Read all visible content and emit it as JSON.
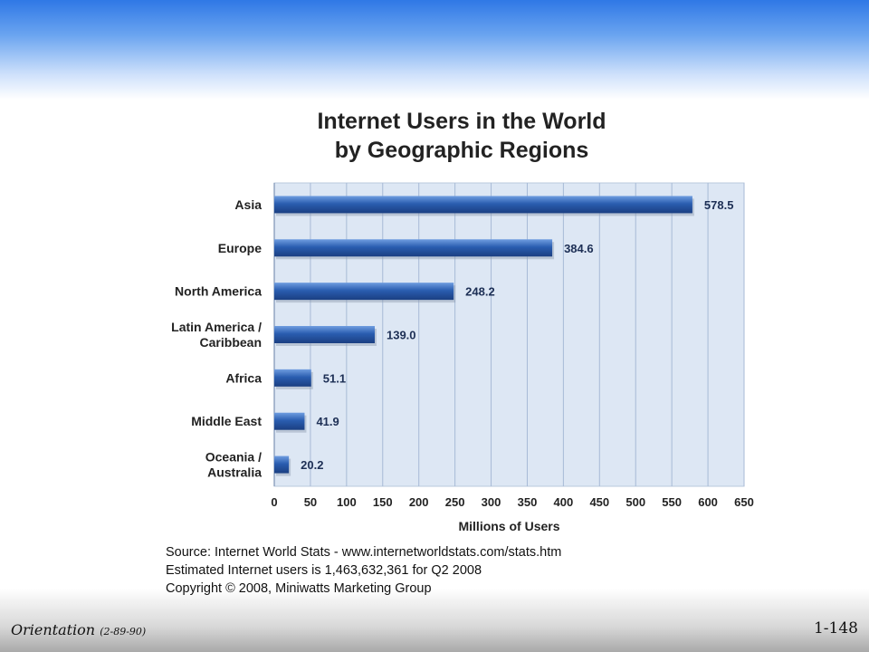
{
  "chart_data": {
    "type": "bar",
    "orientation": "horizontal",
    "title": [
      "Internet Users in the World",
      "by Geographic Regions"
    ],
    "categories": [
      [
        "Asia"
      ],
      [
        "Europe"
      ],
      [
        "North America"
      ],
      [
        "Latin America /",
        "Caribbean"
      ],
      [
        "Africa"
      ],
      [
        "Middle East"
      ],
      [
        "Oceania  /",
        "Australia"
      ]
    ],
    "values": [
      578.5,
      384.6,
      248.2,
      139.0,
      51.1,
      41.9,
      20.2
    ],
    "value_labels": [
      "578.5",
      "384.6",
      "248.2",
      "139.0",
      "51.1",
      "41.9",
      "20.2"
    ],
    "xlabel": "Millions of Users",
    "xlim": [
      0,
      650
    ],
    "xticks": [
      0,
      50,
      100,
      150,
      200,
      250,
      300,
      350,
      400,
      450,
      500,
      550,
      600,
      650
    ],
    "grid": true,
    "bar_color": "#2a5db0",
    "plot_background": "#dde7f4"
  },
  "source": [
    "Source: Internet World Stats - www.internetworldstats.com/stats.htm",
    "Estimated Internet users is 1,463,632,361 for Q2 2008",
    "Copyright © 2008, Miniwatts Marketing Group"
  ],
  "footer": {
    "left_main": "Orientation",
    "left_small": "(2-89-90)",
    "page_number": "1-148"
  }
}
